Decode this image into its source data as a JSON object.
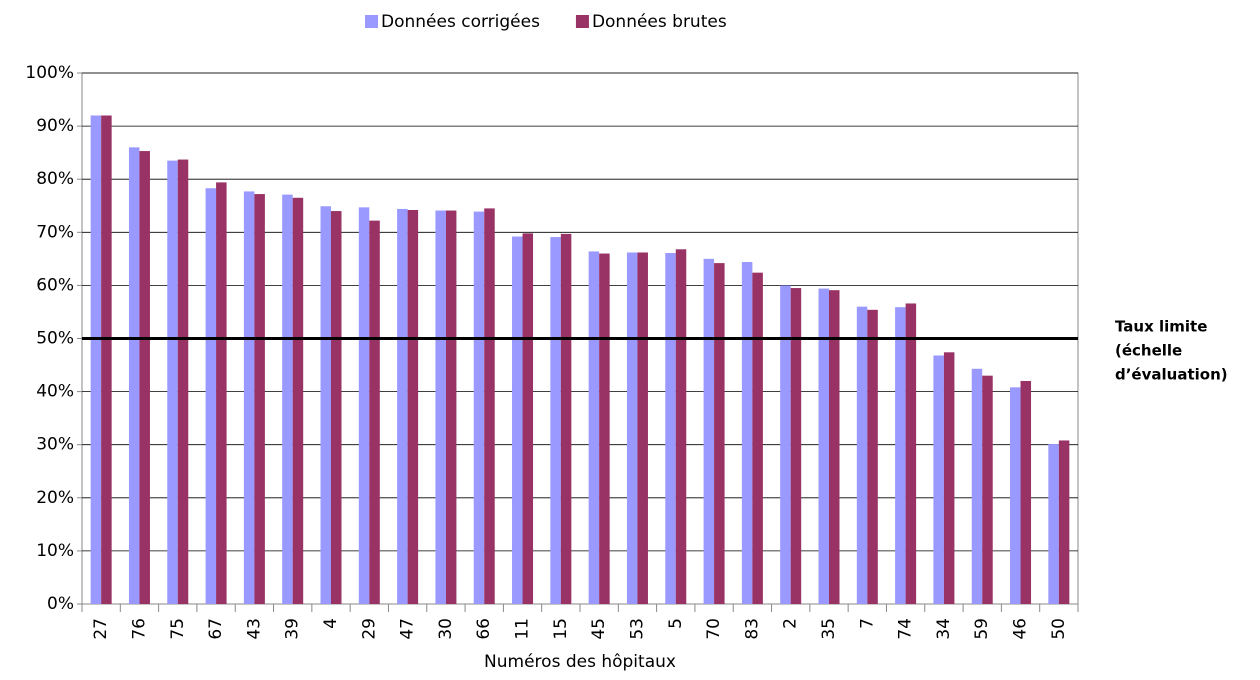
{
  "chart_data": {
    "type": "bar",
    "x_label": "Numéros des hôpitaux",
    "categories": [
      "27",
      "76",
      "75",
      "67",
      "43",
      "39",
      "4",
      "29",
      "47",
      "30",
      "66",
      "11",
      "15",
      "45",
      "53",
      "5",
      "70",
      "83",
      "2",
      "35",
      "7",
      "74",
      "34",
      "59",
      "46",
      "50"
    ],
    "series": [
      {
        "name": "Données corrigées",
        "color": "#9999ff",
        "values": [
          92,
          86,
          83.5,
          78.3,
          77.7,
          77.1,
          74.9,
          74.7,
          74.4,
          74.1,
          73.9,
          69.2,
          69.1,
          66.4,
          66.2,
          66.1,
          65,
          64.4,
          60,
          59.4,
          56,
          55.9,
          46.8,
          44.3,
          40.8,
          30.1
        ]
      },
      {
        "name": "Données brutes",
        "color": "#993366",
        "values": [
          92,
          85.3,
          83.7,
          79.4,
          77.2,
          76.5,
          74,
          72.2,
          74.2,
          74.1,
          74.5,
          69.8,
          69.7,
          66,
          66.2,
          66.8,
          64.2,
          62.4,
          59.5,
          59.1,
          55.4,
          56.6,
          47.4,
          43,
          42,
          30.8
        ]
      }
    ],
    "ylim": [
      0,
      100
    ],
    "yticks": [
      {
        "value": 0,
        "label": "0%"
      },
      {
        "value": 10,
        "label": "10%"
      },
      {
        "value": 20,
        "label": "20%"
      },
      {
        "value": 30,
        "label": "30%"
      },
      {
        "value": 40,
        "label": "40%"
      },
      {
        "value": 50,
        "label": "50%"
      },
      {
        "value": 60,
        "label": "60%"
      },
      {
        "value": 70,
        "label": "70%"
      },
      {
        "value": 80,
        "label": "80%"
      },
      {
        "value": 90,
        "label": "90%"
      },
      {
        "value": 100,
        "label": "100%"
      }
    ],
    "grid": true,
    "legend": "top",
    "threshold": {
      "value": 50,
      "lines": [
        "Taux limite",
        "(échelle",
        "d’évaluation)"
      ]
    }
  }
}
